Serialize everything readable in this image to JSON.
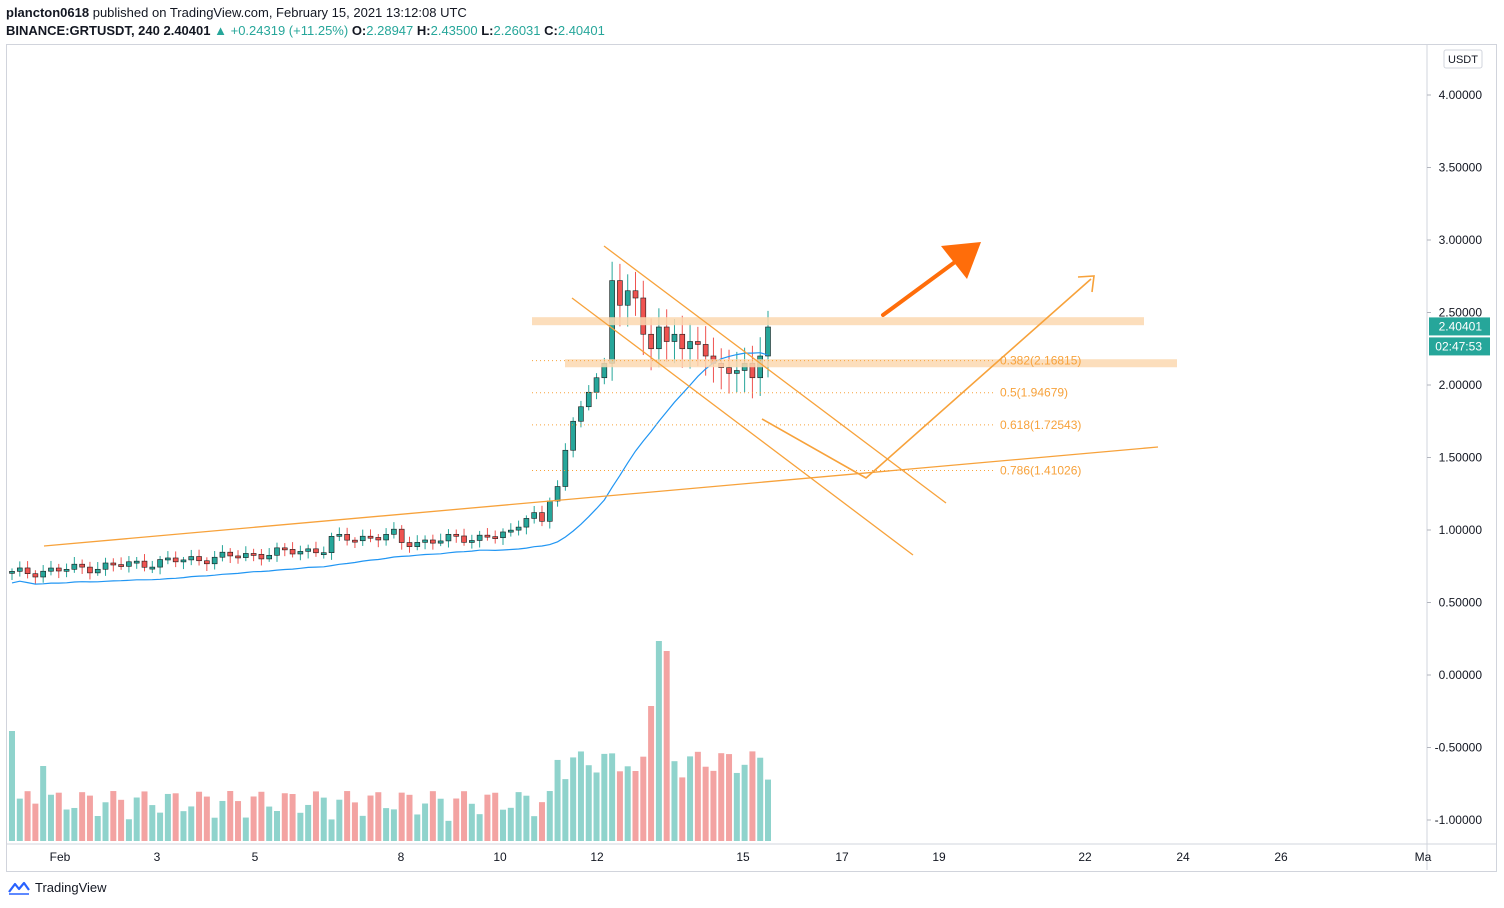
{
  "header": {
    "author": "plancton0618",
    "published_text": "published on TradingView.com, February 15, 2021 13:12:08 UTC",
    "symbol": "BINANCE:GRTUSDT, 240",
    "last": "2.40401",
    "change": "+0.24319 (+11.25%)",
    "o_label": "O:",
    "o": "2.28947",
    "h_label": "H:",
    "h": "2.43500",
    "l_label": "L:",
    "l": "2.26031",
    "c_label": "C:",
    "c": "2.40401"
  },
  "price_axis": {
    "currency": "USDT",
    "ticks": [
      "4.00000",
      "3.50000",
      "3.00000",
      "2.50000",
      "2.00000",
      "1.50000",
      "1.00000",
      "0.50000",
      "0.00000",
      "-0.50000",
      "-1.00000"
    ],
    "last_price_label": "2.40401",
    "countdown_label": "02:47:53"
  },
  "time_axis": {
    "labels": [
      "Feb",
      "3",
      "5",
      "8",
      "10",
      "12",
      "15",
      "17",
      "19",
      "22",
      "24",
      "26",
      "Ma"
    ]
  },
  "fib_levels": [
    {
      "label": "0.382(2.16815)",
      "price": 2.16815
    },
    {
      "label": "0.5(1.94679)",
      "price": 1.94679
    },
    {
      "label": "0.618(1.72543)",
      "price": 1.72543
    },
    {
      "label": "0.786(1.41026)",
      "price": 1.41026
    }
  ],
  "colors": {
    "up": "#26a69a",
    "down": "#ef5350",
    "ma": "#2196f3",
    "drawing": "#f7a23b",
    "arrow": "#ff6d0a",
    "zone": "#fbd8b0"
  },
  "footer": {
    "brand": "TradingView"
  },
  "chart_data": {
    "type": "candlestick",
    "title": "BINANCE:GRTUSDT, 240",
    "ylabel": "USDT",
    "ylim": [
      -1.1,
      4.35
    ],
    "x_labels": [
      "Feb",
      "3",
      "5",
      "8",
      "10",
      "12",
      "15",
      "17",
      "19",
      "22",
      "24",
      "26",
      "Ma"
    ],
    "last_close": 2.40401,
    "fib_retracements": [
      2.16815,
      1.94679,
      1.72543,
      1.41026
    ],
    "resistance_zones": [
      2.44,
      2.15
    ]
  }
}
